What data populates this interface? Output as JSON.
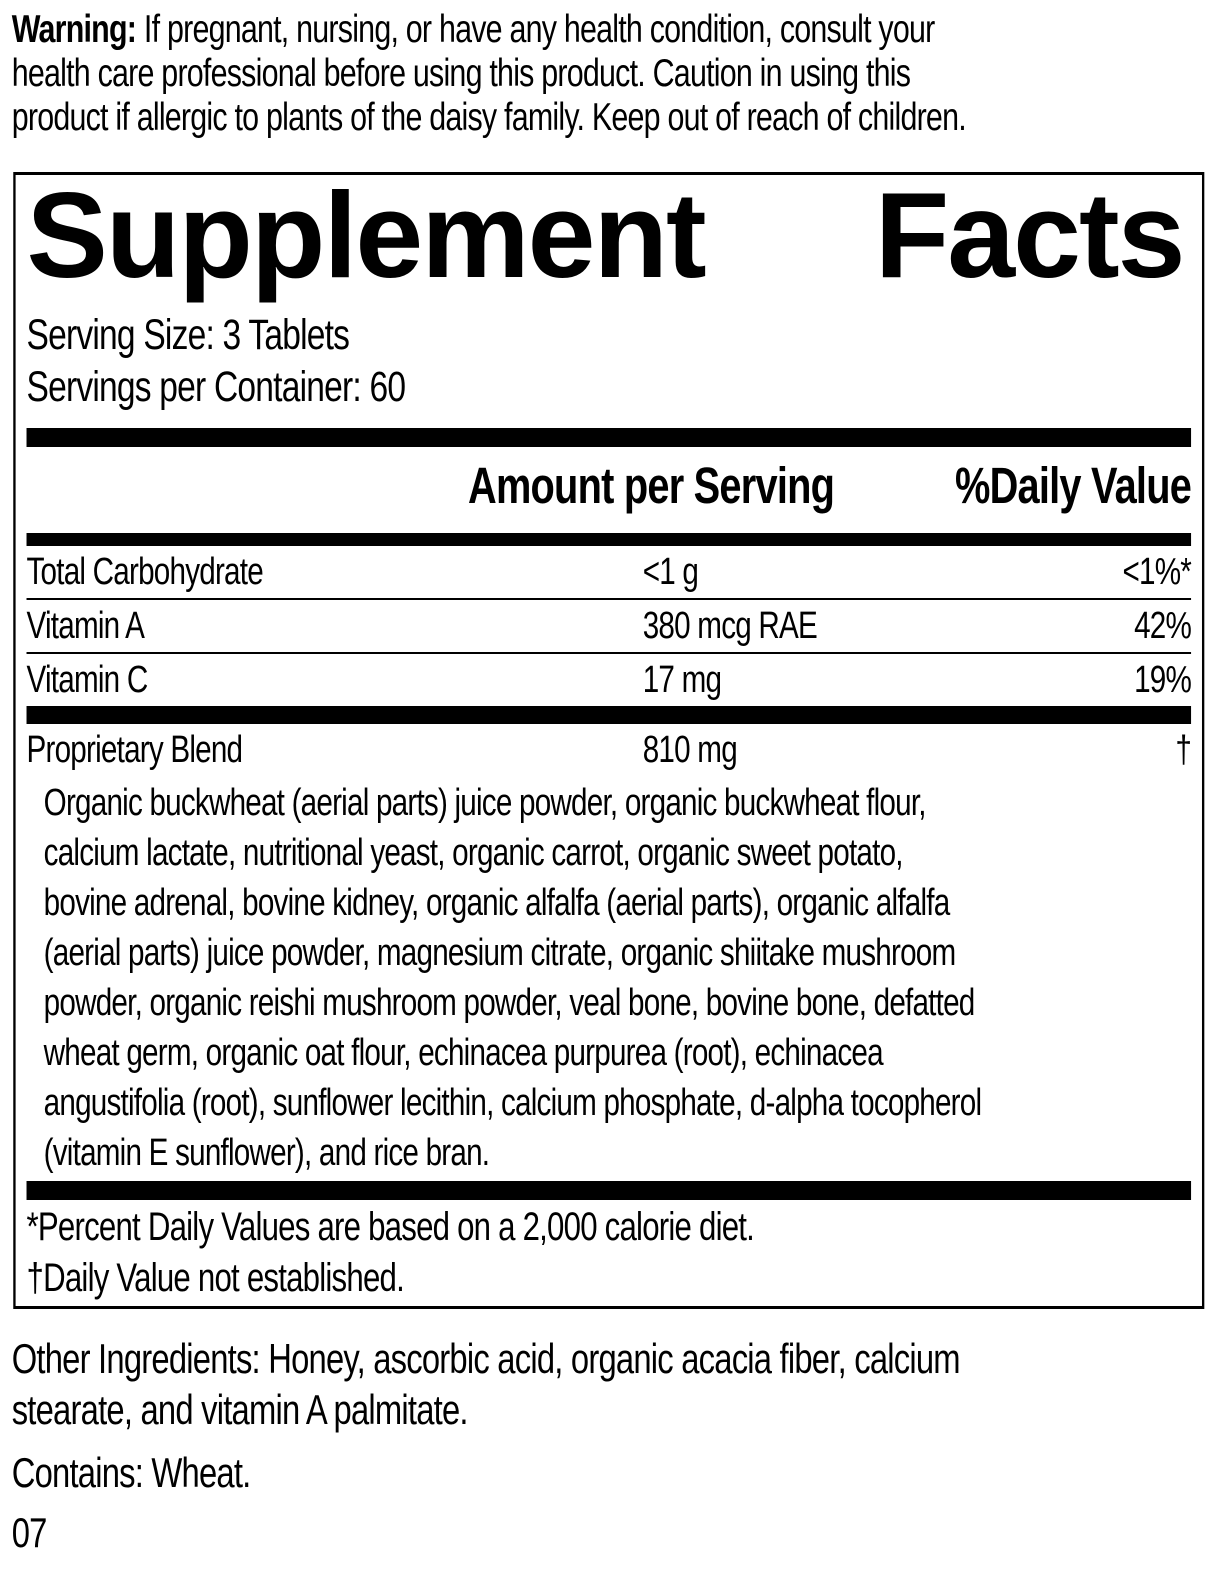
{
  "colors": {
    "text": "#000000",
    "background": "#ffffff"
  },
  "warning": {
    "label": "Warning:",
    "lines": [
      "If pregnant, nursing, or have any health condition, consult your",
      "health care professional before using this product. Caution in using this",
      "product if allergic to plants of the daisy family. Keep out of reach of children."
    ]
  },
  "panel": {
    "title": {
      "left": "Supplement",
      "right": "Facts"
    },
    "serving_size": "Serving Size: 3 Tablets",
    "servings_per_container": "Servings per Container: 60",
    "columns": {
      "amount": "Amount per Serving",
      "daily_value": "%Daily Value"
    },
    "rows": [
      {
        "name": "Total Carbohydrate",
        "amount": "<1 g",
        "daily_value": "<1%*"
      },
      {
        "name": "Vitamin A",
        "amount": "380 mcg RAE",
        "daily_value": "42%"
      },
      {
        "name": "Vitamin C",
        "amount": "17 mg",
        "daily_value": "19%"
      }
    ],
    "proprietary": {
      "name": "Proprietary Blend",
      "amount": "810 mg",
      "daily_value": "†"
    },
    "blend_lines": [
      "Organic buckwheat (aerial parts) juice powder, organic buckwheat flour,",
      "calcium lactate, nutritional yeast, organic carrot, organic sweet potato,",
      "bovine adrenal, bovine kidney, organic alfalfa (aerial parts), organic alfalfa",
      "(aerial parts) juice powder, magnesium citrate, organic shiitake mushroom",
      "powder, organic reishi mushroom powder, veal bone, bovine bone, defatted",
      "wheat germ, organic oat flour, echinacea purpurea (root), echinacea",
      "angustifolia (root), sunflower lecithin, calcium phosphate, d-alpha tocopherol",
      "(vitamin E sunflower), and rice bran."
    ],
    "footnotes": [
      "*Percent Daily Values are based on a 2,000 calorie diet.",
      "†Daily Value not established."
    ]
  },
  "other_ingredients": {
    "lines": [
      "Other Ingredients: Honey, ascorbic acid, organic acacia fiber, calcium",
      "stearate, and vitamin A palmitate."
    ]
  },
  "contains": "Contains: Wheat.",
  "code": "07"
}
